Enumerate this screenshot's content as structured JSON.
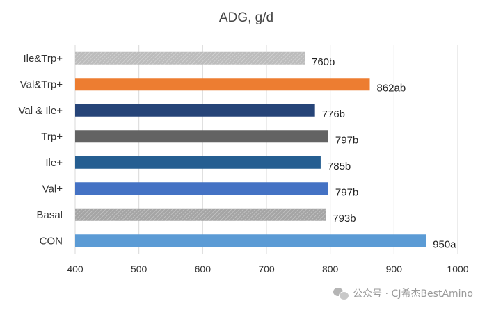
{
  "chart_data": {
    "type": "bar",
    "orientation": "horizontal",
    "title": "ADG, g/d",
    "xlabel": "",
    "ylabel": "",
    "xlim": [
      400,
      1000
    ],
    "xticks": [
      "400",
      "500",
      "600",
      "700",
      "800",
      "900",
      "1000"
    ],
    "grid": true,
    "categories": [
      "Ile&Trp+",
      "Val&Trp+",
      "Val & Ile+",
      "Trp+",
      "Ile+",
      "Val+",
      "Basal",
      "CON"
    ],
    "values": [
      760,
      862,
      776,
      797,
      785,
      797,
      793,
      950
    ],
    "data_labels": [
      "760b",
      "862ab",
      "776b",
      "797b",
      "785b",
      "797b",
      "793b",
      "950a"
    ],
    "colors": [
      "#bcbcbc",
      "#ed7d31",
      "#264478",
      "#636363",
      "#255e91",
      "#4472c4",
      "#a5a5a5",
      "#5b9bd5"
    ],
    "patterned": [
      true,
      false,
      false,
      false,
      false,
      false,
      true,
      false
    ]
  },
  "watermark": {
    "text": "公众号 · CJ希杰BestAmino",
    "icon": "wechat-icon"
  }
}
